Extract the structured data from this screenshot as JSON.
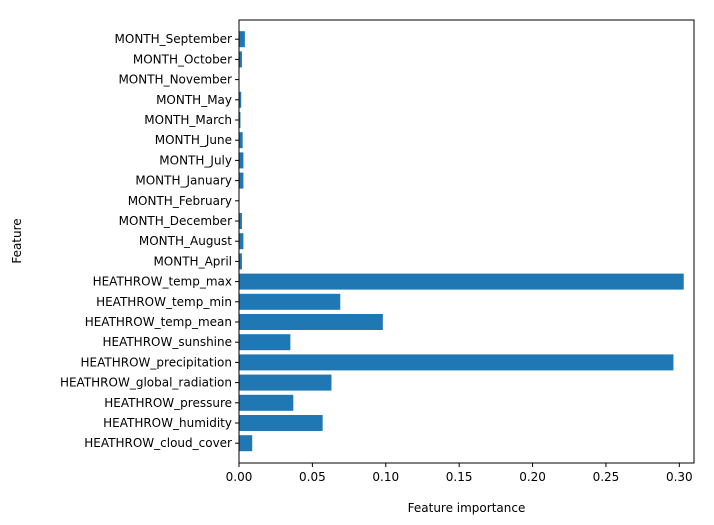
{
  "chart_data": {
    "type": "bar",
    "orientation": "horizontal",
    "xlabel": "Feature importance",
    "ylabel": "Feature",
    "xlim": [
      0,
      0.31
    ],
    "xticks": [
      "0.00",
      "0.05",
      "0.10",
      "0.15",
      "0.20",
      "0.25",
      "0.30"
    ],
    "grid": false,
    "bar_color": "#1f77b4",
    "categories": [
      "HEATHROW_cloud_cover",
      "HEATHROW_humidity",
      "HEATHROW_pressure",
      "HEATHROW_global_radiation",
      "HEATHROW_precipitation",
      "HEATHROW_sunshine",
      "HEATHROW_temp_mean",
      "HEATHROW_temp_min",
      "HEATHROW_temp_max",
      "MONTH_April",
      "MONTH_August",
      "MONTH_December",
      "MONTH_February",
      "MONTH_January",
      "MONTH_July",
      "MONTH_June",
      "MONTH_March",
      "MONTH_May",
      "MONTH_November",
      "MONTH_October",
      "MONTH_September"
    ],
    "values": [
      0.009,
      0.057,
      0.037,
      0.063,
      0.296,
      0.035,
      0.098,
      0.069,
      0.303,
      0.002,
      0.003,
      0.002,
      0.0,
      0.003,
      0.003,
      0.0025,
      0.001,
      0.0015,
      0.0,
      0.002,
      0.004
    ]
  }
}
